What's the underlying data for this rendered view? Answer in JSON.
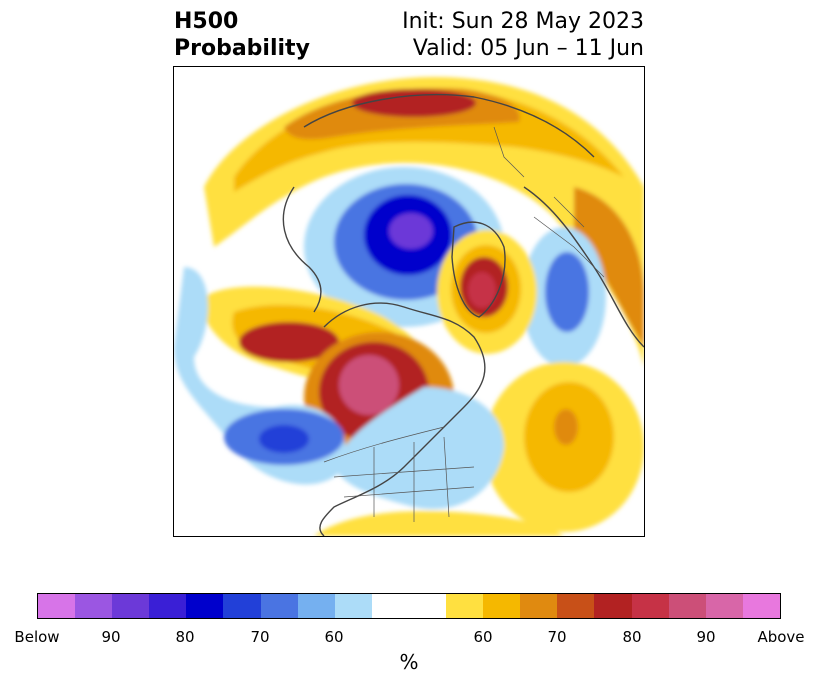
{
  "header": {
    "left_line1": "H500",
    "left_line2": "Probability",
    "right_line1": "Init: Sun 28 May 2023",
    "right_line2": "Valid: 05 Jun – 11 Jun"
  },
  "colorbar": {
    "unit": "%",
    "colors": [
      "#d774e8",
      "#9b56e2",
      "#6c39d8",
      "#3a1fd6",
      "#0000cc",
      "#2240d8",
      "#4a74e2",
      "#75b0f0",
      "#acdcf8",
      "#ffffff",
      "#ffe040",
      "#f5b800",
      "#e08a10",
      "#c85018",
      "#b22222",
      "#c63246",
      "#cc4f78",
      "#d866a8",
      "#e878de"
    ],
    "tick_labels": [
      "Below",
      "90",
      "80",
      "70",
      "60",
      "60",
      "70",
      "80",
      "90",
      "Above"
    ]
  }
}
